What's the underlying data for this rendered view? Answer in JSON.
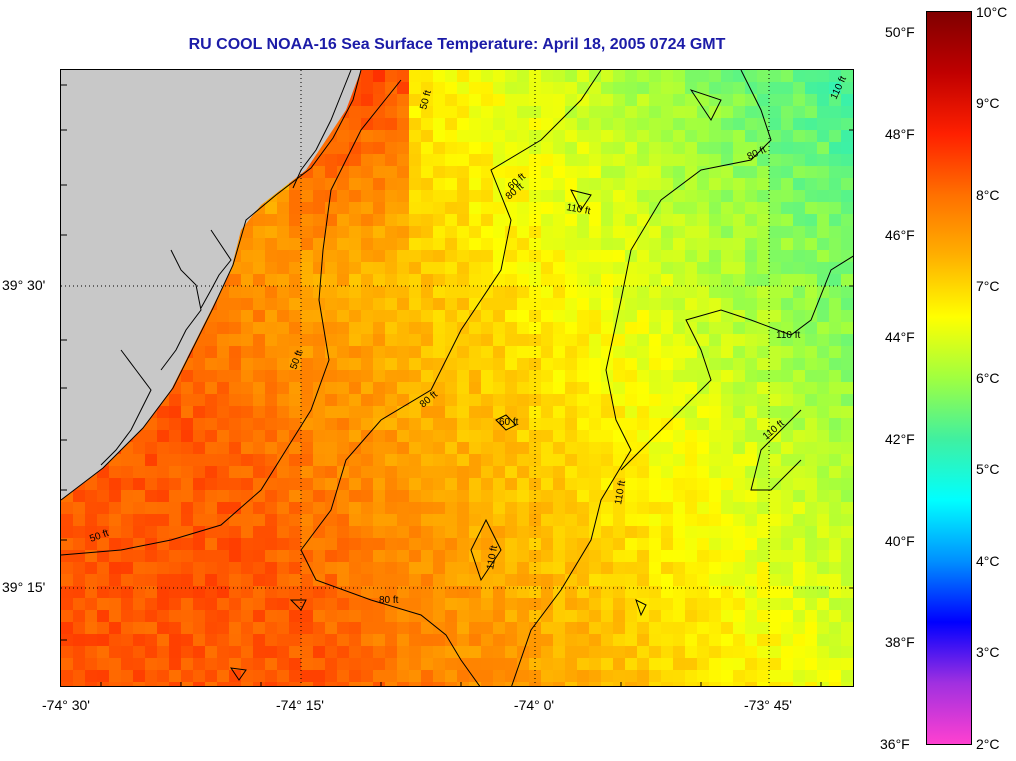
{
  "title": "RU COOL  NOAA-16  Sea Surface Temperature:  April 18, 2005 0724 GMT",
  "lon_labels": [
    "-74° 30'",
    "-74° 15'",
    "-74° 0'",
    "-73° 45'"
  ],
  "lat_labels": [
    "39° 30'",
    "39° 15'"
  ],
  "colorbar": {
    "fahrenheit_labels": [
      "50°F",
      "48°F",
      "46°F",
      "44°F",
      "42°F",
      "40°F",
      "38°F",
      "36°F"
    ],
    "celsius_labels": [
      "10°C",
      "9°C",
      "8°C",
      "7°C",
      "6°C",
      "5°C",
      "4°C",
      "3°C",
      "2°C"
    ],
    "range_c": [
      2,
      10
    ],
    "colors": [
      "#ff40d0",
      "#a030e0",
      "#0000ff",
      "#0090ff",
      "#00ffff",
      "#40f0a0",
      "#a0ff40",
      "#ffff00",
      "#ffb000",
      "#ff7000",
      "#ff2000",
      "#c00000",
      "#800000"
    ]
  },
  "land_color": "#c8c8c8",
  "contour_labels": [
    "50 ft",
    "50 ft",
    "50 ft",
    "80 ft",
    "80 ft",
    "80 ft",
    "80 ft",
    "60 ft",
    "110 ft",
    "110 ft",
    "110 ft",
    "110 ft",
    "110 ft",
    "110 ft",
    "60 ft"
  ]
}
